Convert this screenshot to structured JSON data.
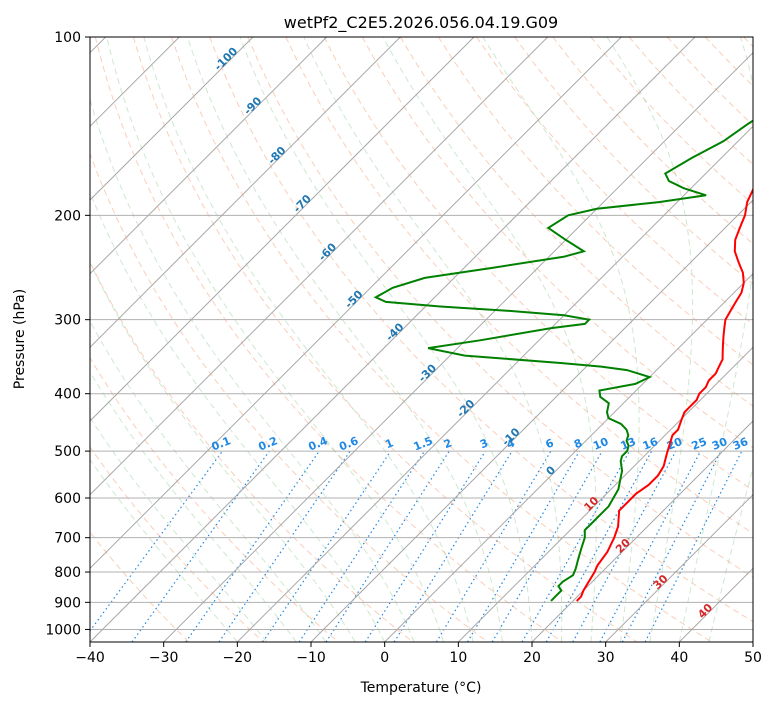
{
  "chart_data": {
    "type": "line",
    "title": "wetPf2_C2E5.2026.056.04.19.G09",
    "xlabel": "Temperature (°C)",
    "ylabel": "Pressure (hPa)",
    "xlim": [
      -40,
      50
    ],
    "ylim": [
      1050,
      100
    ],
    "y_scale": "log",
    "grid": true,
    "x_ticks": [
      -40,
      -30,
      -20,
      -10,
      0,
      10,
      20,
      30,
      40,
      50
    ],
    "y_ticks": [
      100,
      200,
      300,
      400,
      500,
      600,
      700,
      800,
      900,
      1000
    ],
    "colors": {
      "temperature": "#ff0000",
      "dewpoint": "#008000",
      "isotherm_label": "#1f77b4",
      "mixing_ratio": "#1e88e5",
      "moist_label": "#d62728",
      "dry_adiabat": "#f4a582",
      "moist_adiabat": "#a6d6a6",
      "mixing_ratio_line": "#1e88e5"
    },
    "isotherm_labels": [
      {
        "label": "-100",
        "T": -100,
        "p": 110
      },
      {
        "label": "-90",
        "T": -90,
        "p": 132
      },
      {
        "label": "-80",
        "T": -80,
        "p": 160
      },
      {
        "label": "-70",
        "T": -70,
        "p": 193
      },
      {
        "label": "-60",
        "T": -60,
        "p": 233
      },
      {
        "label": "-50",
        "T": -50,
        "p": 280
      },
      {
        "label": "-40",
        "T": -40,
        "p": 318
      },
      {
        "label": "-30",
        "T": -30,
        "p": 373
      },
      {
        "label": "-20",
        "T": -20,
        "p": 428
      },
      {
        "label": "-10",
        "T": -10,
        "p": 478
      },
      {
        "label": "0",
        "T": 0,
        "p": 545
      }
    ],
    "mixing_ratio_labels": [
      "0.1",
      "0.2",
      "0.4",
      "0.6",
      "1",
      "1.5",
      "2",
      "3",
      "4",
      "6",
      "8",
      "10",
      "13",
      "16",
      "20",
      "25",
      "30",
      "36"
    ],
    "moist_labels": [
      {
        "label": "10",
        "T": 10,
        "p": 620
      },
      {
        "label": "20",
        "T": 20,
        "p": 730
      },
      {
        "label": "30",
        "T": 30,
        "p": 840
      },
      {
        "label": "40",
        "T": 40,
        "p": 940
      }
    ],
    "series": [
      {
        "key": "temperature",
        "points": [
          [
            -15.5,
            100
          ],
          [
            -15,
            110
          ],
          [
            -15.5,
            120
          ],
          [
            -16.5,
            130
          ],
          [
            -16.5,
            140
          ],
          [
            -16.5,
            150
          ],
          [
            -15,
            160
          ],
          [
            -13,
            170
          ],
          [
            -11.5,
            180
          ],
          [
            -10.5,
            190
          ],
          [
            -9,
            200
          ],
          [
            -8,
            210
          ],
          [
            -7,
            220
          ],
          [
            -5.5,
            230
          ],
          [
            -3.5,
            240
          ],
          [
            -1.5,
            250
          ],
          [
            0,
            260
          ],
          [
            1,
            270
          ],
          [
            1.5,
            280
          ],
          [
            2,
            290
          ],
          [
            2.5,
            300
          ],
          [
            3.5,
            310
          ],
          [
            4.5,
            320
          ],
          [
            5.5,
            330
          ],
          [
            6.5,
            340
          ],
          [
            7.5,
            350
          ],
          [
            8,
            360
          ],
          [
            8.5,
            370
          ],
          [
            8.5,
            380
          ],
          [
            9,
            390
          ],
          [
            9,
            400
          ],
          [
            9.5,
            410
          ],
          [
            9.5,
            420
          ],
          [
            9.5,
            430
          ],
          [
            10,
            440
          ],
          [
            10.5,
            450
          ],
          [
            11,
            460
          ],
          [
            11,
            470
          ],
          [
            11.5,
            480
          ],
          [
            12,
            490
          ],
          [
            12.5,
            500
          ],
          [
            13,
            510
          ],
          [
            14,
            530
          ],
          [
            14.5,
            550
          ],
          [
            14.5,
            570
          ],
          [
            14,
            590
          ],
          [
            14,
            610
          ],
          [
            14,
            630
          ],
          [
            15,
            650
          ],
          [
            16,
            670
          ],
          [
            17,
            700
          ],
          [
            18,
            740
          ],
          [
            18.5,
            780
          ],
          [
            19,
            800
          ],
          [
            19.5,
            830
          ],
          [
            20,
            860
          ],
          [
            20.5,
            880
          ],
          [
            20.5,
            895
          ]
        ]
      },
      {
        "key": "dewpoint",
        "points": [
          [
            -17.5,
            100
          ],
          [
            -17,
            110
          ],
          [
            -17.5,
            120
          ],
          [
            -19.5,
            130
          ],
          [
            -21,
            140
          ],
          [
            -22,
            150
          ],
          [
            -24,
            160
          ],
          [
            -25.5,
            170
          ],
          [
            -24,
            175
          ],
          [
            -21,
            180
          ],
          [
            -17,
            185
          ],
          [
            -22.5,
            190
          ],
          [
            -30,
            195
          ],
          [
            -33,
            200
          ],
          [
            -34,
            210
          ],
          [
            -30,
            220
          ],
          [
            -26,
            230
          ],
          [
            -28,
            235
          ],
          [
            -36,
            245
          ],
          [
            -44,
            255
          ],
          [
            -47,
            265
          ],
          [
            -48,
            275
          ],
          [
            -46,
            280
          ],
          [
            -38,
            285
          ],
          [
            -28,
            290
          ],
          [
            -20,
            295
          ],
          [
            -16,
            300
          ],
          [
            -16,
            305
          ],
          [
            -20,
            310
          ],
          [
            -28,
            325
          ],
          [
            -34,
            335
          ],
          [
            -28,
            345
          ],
          [
            -14,
            355
          ],
          [
            -8,
            360
          ],
          [
            -4,
            365
          ],
          [
            -2,
            370
          ],
          [
            0,
            375
          ],
          [
            -1,
            385
          ],
          [
            -5,
            395
          ],
          [
            -4,
            405
          ],
          [
            -2,
            415
          ],
          [
            -1,
            430
          ],
          [
            0,
            440
          ],
          [
            2.5,
            450
          ],
          [
            4,
            460
          ],
          [
            5,
            470
          ],
          [
            5.5,
            480
          ],
          [
            6.5,
            490
          ],
          [
            7,
            500
          ],
          [
            7,
            510
          ],
          [
            7.5,
            520
          ],
          [
            9,
            540
          ],
          [
            10,
            560
          ],
          [
            11,
            580
          ],
          [
            11.5,
            600
          ],
          [
            12,
            620
          ],
          [
            12,
            640
          ],
          [
            12,
            660
          ],
          [
            12,
            680
          ],
          [
            13,
            700
          ],
          [
            14,
            730
          ],
          [
            15,
            760
          ],
          [
            16,
            790
          ],
          [
            16.5,
            810
          ],
          [
            16,
            830
          ],
          [
            16,
            845
          ],
          [
            17,
            860
          ],
          [
            17,
            880
          ],
          [
            17,
            895
          ]
        ]
      }
    ]
  }
}
